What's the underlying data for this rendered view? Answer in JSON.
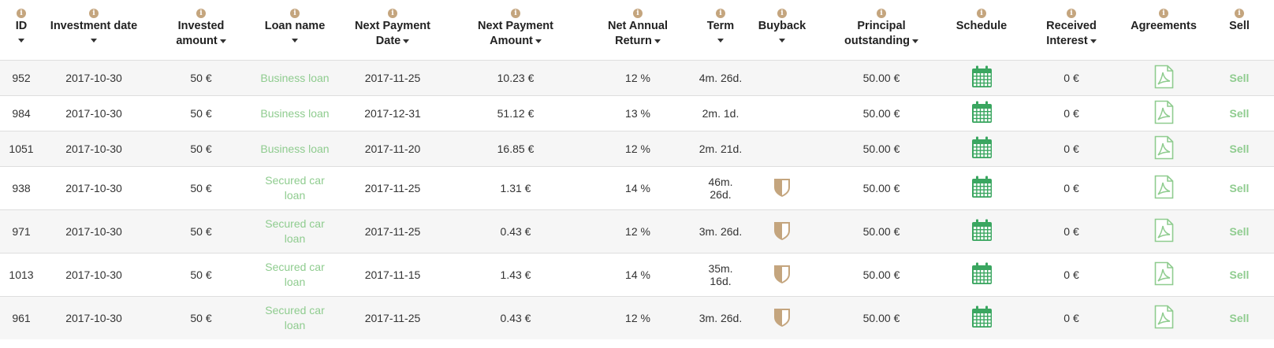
{
  "table": {
    "columns": [
      {
        "label": "ID",
        "sortable": true
      },
      {
        "label": "Investment date",
        "sortable": true
      },
      {
        "label": "Invested amount",
        "sortable": true
      },
      {
        "label": "Loan name",
        "sortable": true
      },
      {
        "label": "Next Payment Date",
        "sortable": true
      },
      {
        "label": "Next Payment Amount",
        "sortable": true
      },
      {
        "label": "Net Annual Return",
        "sortable": true
      },
      {
        "label": "Term",
        "sortable": true
      },
      {
        "label": "Buyback",
        "sortable": true
      },
      {
        "label": "Principal outstanding",
        "sortable": true
      },
      {
        "label": "Schedule",
        "sortable": false
      },
      {
        "label": "Received Interest",
        "sortable": true
      },
      {
        "label": "Agreements",
        "sortable": false
      },
      {
        "label": "Sell",
        "sortable": false
      }
    ],
    "rows": [
      {
        "id": "952",
        "investment_date": "2017-10-30",
        "invested": "50 €",
        "loan_name": "Business loan",
        "next_date": "2017-11-25",
        "next_amount": "10.23 €",
        "return": "12 %",
        "term": "4m. 26d.",
        "buyback": false,
        "principal": "50.00 €",
        "received": "0 €",
        "sell": "Sell"
      },
      {
        "id": "984",
        "investment_date": "2017-10-30",
        "invested": "50 €",
        "loan_name": "Business loan",
        "next_date": "2017-12-31",
        "next_amount": "51.12 €",
        "return": "13 %",
        "term": "2m. 1d.",
        "buyback": false,
        "principal": "50.00 €",
        "received": "0 €",
        "sell": "Sell"
      },
      {
        "id": "1051",
        "investment_date": "2017-10-30",
        "invested": "50 €",
        "loan_name": "Business loan",
        "next_date": "2017-11-20",
        "next_amount": "16.85 €",
        "return": "12 %",
        "term": "2m. 21d.",
        "buyback": false,
        "principal": "50.00 €",
        "received": "0 €",
        "sell": "Sell"
      },
      {
        "id": "938",
        "investment_date": "2017-10-30",
        "invested": "50 €",
        "loan_name": "Secured car loan",
        "next_date": "2017-11-25",
        "next_amount": "1.31 €",
        "return": "14 %",
        "term": "46m. 26d.",
        "buyback": true,
        "principal": "50.00 €",
        "received": "0 €",
        "sell": "Sell"
      },
      {
        "id": "971",
        "investment_date": "2017-10-30",
        "invested": "50 €",
        "loan_name": "Secured car loan",
        "next_date": "2017-11-25",
        "next_amount": "0.43 €",
        "return": "12 %",
        "term": "3m. 26d.",
        "buyback": true,
        "principal": "50.00 €",
        "received": "0 €",
        "sell": "Sell"
      },
      {
        "id": "1013",
        "investment_date": "2017-10-30",
        "invested": "50 €",
        "loan_name": "Secured car loan",
        "next_date": "2017-11-15",
        "next_amount": "1.43 €",
        "return": "14 %",
        "term": "35m. 16d.",
        "buyback": true,
        "principal": "50.00 €",
        "received": "0 €",
        "sell": "Sell"
      },
      {
        "id": "961",
        "investment_date": "2017-10-30",
        "invested": "50 €",
        "loan_name": "Secured car loan",
        "next_date": "2017-11-25",
        "next_amount": "0.43 €",
        "return": "12 %",
        "term": "3m. 26d.",
        "buyback": true,
        "principal": "50.00 €",
        "received": "0 €",
        "sell": "Sell"
      }
    ]
  },
  "icons": {
    "info": "info-icon",
    "sort": "caret-down-icon",
    "buyback": "shield-icon",
    "schedule": "calendar-icon",
    "agreement": "pdf-document-icon"
  },
  "colors": {
    "link_green": "#8fcc8f",
    "calendar_green": "#3aa660",
    "info_tan": "#c4a57e",
    "row_stripe": "#f6f6f6"
  }
}
